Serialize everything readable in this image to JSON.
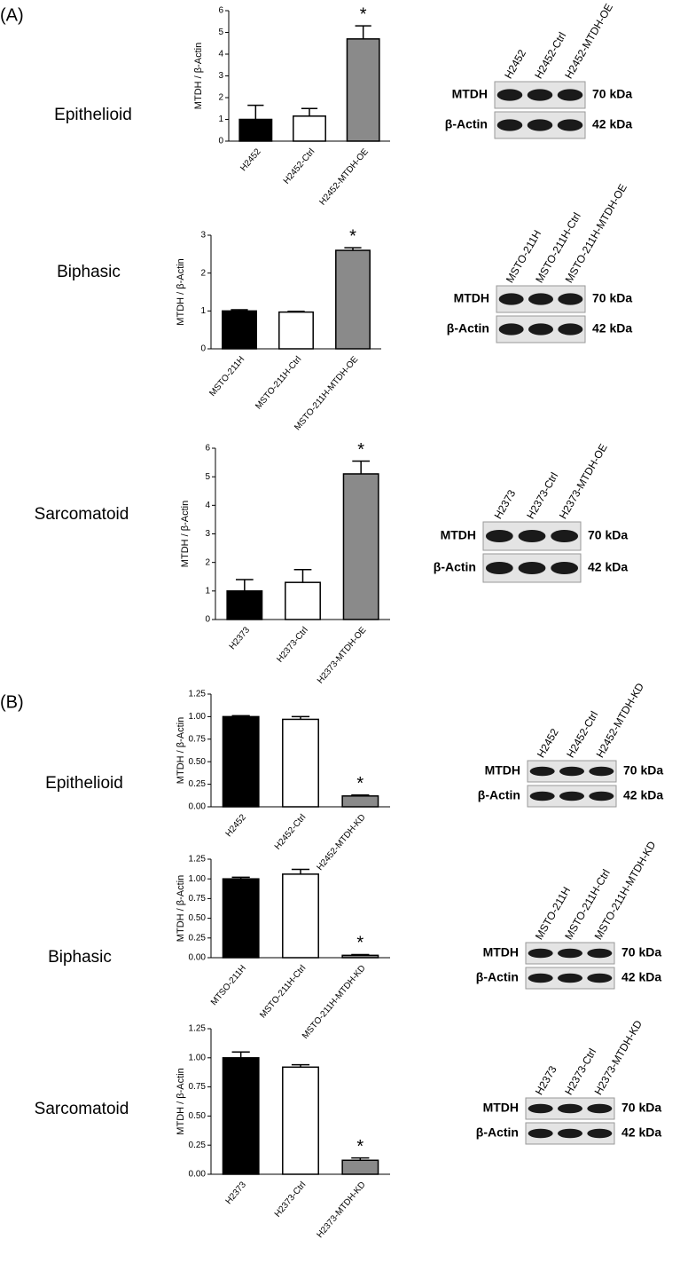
{
  "chart_data": [
    {
      "type": "bar",
      "ylabel": "MTDH / β-Actin",
      "categories": [
        "H2452",
        "H2452-Ctrl",
        "H2452-MTDH-OE"
      ],
      "values": [
        1,
        1.15,
        4.7
      ],
      "errors": [
        0.65,
        0.35,
        0.6
      ],
      "colors": [
        "#000000",
        "#ffffff",
        "#8a8a8a"
      ],
      "ylim": [
        0,
        6
      ],
      "yticks": [
        0,
        1,
        2,
        3,
        4,
        5,
        6
      ],
      "annotations": [
        "*"
      ]
    },
    {
      "type": "bar",
      "ylabel": "MTDH / β-Actin",
      "categories": [
        "MSTO-211H",
        "MSTO-211H-Ctrl",
        "MSTO-211H-MTDH-OE"
      ],
      "values": [
        1,
        0.97,
        2.6
      ],
      "errors": [
        0.03,
        0.02,
        0.07
      ],
      "colors": [
        "#000000",
        "#ffffff",
        "#8a8a8a"
      ],
      "ylim": [
        0,
        3
      ],
      "yticks": [
        0,
        1,
        2,
        3
      ],
      "annotations": [
        "*"
      ]
    },
    {
      "type": "bar",
      "ylabel": "MTDH / β-Actin",
      "categories": [
        "H2373",
        "H2373-Ctrl",
        "H2373-MTDH-OE"
      ],
      "values": [
        1,
        1.3,
        5.1
      ],
      "errors": [
        0.4,
        0.45,
        0.45
      ],
      "colors": [
        "#000000",
        "#ffffff",
        "#8a8a8a"
      ],
      "ylim": [
        0,
        6
      ],
      "yticks": [
        0,
        1,
        2,
        3,
        4,
        5,
        6
      ],
      "annotations": [
        "*"
      ]
    },
    {
      "type": "bar",
      "ylabel": "MTDH / β-Actin",
      "categories": [
        "H2452",
        "H2452-Ctrl",
        "H2452-MTDH-KD"
      ],
      "values": [
        1,
        0.97,
        0.12
      ],
      "errors": [
        0.01,
        0.03,
        0.01
      ],
      "colors": [
        "#000000",
        "#ffffff",
        "#8a8a8a"
      ],
      "ylim": [
        0,
        1.25
      ],
      "yticks": [
        {
          "value": 0,
          "label": "0.00"
        },
        {
          "value": 0.25,
          "label": "0.25"
        },
        {
          "value": 0.5,
          "label": "0.50"
        },
        {
          "value": 0.75,
          "label": "0.75"
        },
        {
          "value": 1,
          "label": "1.00"
        },
        {
          "value": 1.25,
          "label": "1.25"
        }
      ],
      "annotations": [
        "*"
      ]
    },
    {
      "type": "bar",
      "ylabel": "MTDH / β-Actin",
      "categories": [
        "MTSO-211H",
        "MSTO-211H-Ctrl",
        "MSTO-211H-MTDH-KD"
      ],
      "values": [
        1,
        1.06,
        0.03
      ],
      "errors": [
        0.02,
        0.06,
        0.01
      ],
      "colors": [
        "#000000",
        "#ffffff",
        "#8a8a8a"
      ],
      "ylim": [
        0,
        1.25
      ],
      "yticks": [
        {
          "value": 0,
          "label": "0.00"
        },
        {
          "value": 0.25,
          "label": "0.25"
        },
        {
          "value": 0.5,
          "label": "0.50"
        },
        {
          "value": 0.75,
          "label": "0.75"
        },
        {
          "value": 1,
          "label": "1.00"
        },
        {
          "value": 1.25,
          "label": "1.25"
        }
      ],
      "annotations": [
        "*"
      ]
    },
    {
      "type": "bar",
      "ylabel": "MTDH / β-Actin",
      "categories": [
        "H2373",
        "H2373-Ctrl",
        "H2373-MTDH-KD"
      ],
      "values": [
        1,
        0.92,
        0.12
      ],
      "errors": [
        0.05,
        0.02,
        0.02
      ],
      "colors": [
        "#000000",
        "#ffffff",
        "#8a8a8a"
      ],
      "ylim": [
        0,
        1.25
      ],
      "yticks": [
        {
          "value": 0,
          "label": "0.00"
        },
        {
          "value": 0.25,
          "label": "0.25"
        },
        {
          "value": 0.5,
          "label": "0.50"
        },
        {
          "value": 0.75,
          "label": "0.75"
        },
        {
          "value": 1,
          "label": "1.00"
        },
        {
          "value": 1.25,
          "label": "1.25"
        }
      ],
      "annotations": [
        "*"
      ]
    }
  ],
  "panels": [
    {
      "label": "(A)",
      "rows": [
        {
          "name": "Epithelioid",
          "blot": {
            "lanes": [
              "H2452",
              "H2452-Ctrl",
              "H2452-MTDH-OE"
            ],
            "proteins": [
              "MTDH",
              "β-Actin"
            ],
            "sizes": [
              "70 kDa",
              "42 kDa"
            ]
          }
        },
        {
          "name": "Biphasic",
          "blot": {
            "lanes": [
              "MSTO-211H",
              "MSTO-211H-Ctrl",
              "MSTO-211H-MTDH-OE"
            ],
            "proteins": [
              "MTDH",
              "β-Actin"
            ],
            "sizes": [
              "70 kDa",
              "42 kDa"
            ]
          }
        },
        {
          "name": "Sarcomatoid",
          "blot": {
            "lanes": [
              "H2373",
              "H2373-Ctrl",
              "H2373-MTDH-OE"
            ],
            "proteins": [
              "MTDH",
              "β-Actin"
            ],
            "sizes": [
              "70 kDa",
              "42 kDa"
            ]
          }
        }
      ]
    },
    {
      "label": "(B)",
      "rows": [
        {
          "name": "Epithelioid",
          "blot": {
            "lanes": [
              "H2452",
              "H2452-Ctrl",
              "H2452-MTDH-KD"
            ],
            "proteins": [
              "MTDH",
              "β-Actin"
            ],
            "sizes": [
              "70 kDa",
              "42 kDa"
            ]
          }
        },
        {
          "name": "Biphasic",
          "blot": {
            "lanes": [
              "MSTO-211H",
              "MSTO-211H-Ctrl",
              "MSTO-211H-MTDH-KD"
            ],
            "proteins": [
              "MTDH",
              "β-Actin"
            ],
            "sizes": [
              "70 kDa",
              "42 kDa"
            ]
          }
        },
        {
          "name": "Sarcomatoid",
          "blot": {
            "lanes": [
              "H2373",
              "H2373-Ctrl",
              "H2373-MTDH-KD"
            ],
            "proteins": [
              "MTDH",
              "β-Actin"
            ],
            "sizes": [
              "70 kDa",
              "42 kDa"
            ]
          }
        }
      ]
    }
  ]
}
